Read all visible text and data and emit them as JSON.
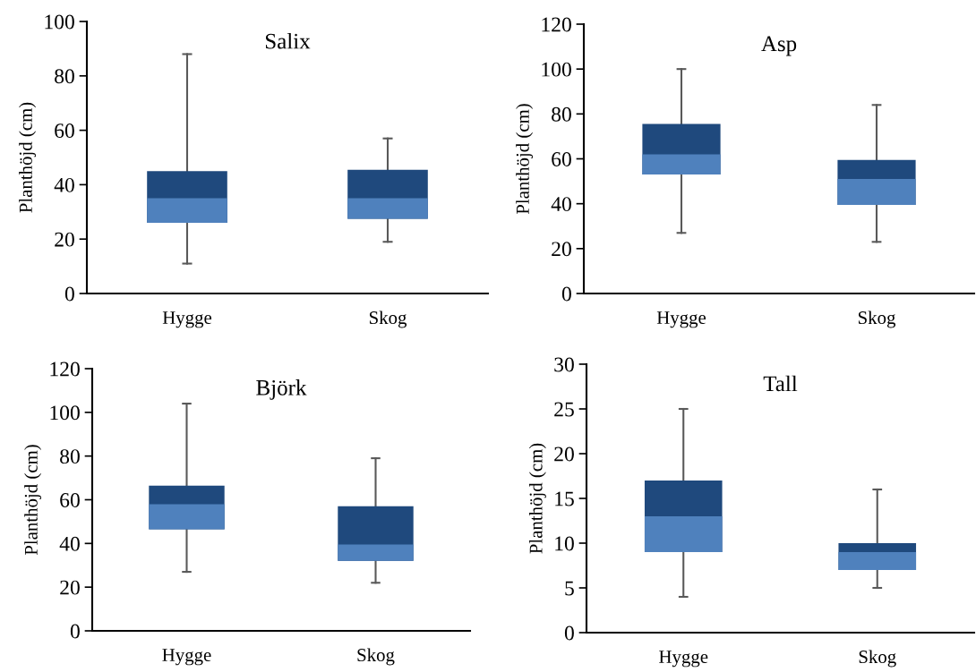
{
  "chart_data": [
    {
      "type": "box",
      "title": "Salix",
      "ylabel": "Planthöjd (cm)",
      "categories": [
        "Hygge",
        "Skog"
      ],
      "colors": [
        "#4f81bd",
        "#1f497d"
      ],
      "ylim": [
        0,
        100
      ],
      "yticks": [
        0,
        20,
        40,
        60,
        80,
        100
      ],
      "grid": false,
      "legend": false,
      "boxes": [
        {
          "low": 11,
          "q1": 26,
          "median": 35,
          "q3": 45,
          "high": 88
        },
        {
          "low": 19,
          "q1": 27.5,
          "median": 35,
          "q3": 45.5,
          "high": 57
        }
      ]
    },
    {
      "type": "box",
      "title": "Asp",
      "ylabel": "Planthöjd (cm)",
      "categories": [
        "Hygge",
        "Skog"
      ],
      "colors": [
        "#4f81bd",
        "#1f497d"
      ],
      "ylim": [
        0,
        120
      ],
      "yticks": [
        0,
        20,
        40,
        60,
        80,
        100,
        120
      ],
      "grid": false,
      "legend": false,
      "boxes": [
        {
          "low": 27,
          "q1": 53,
          "median": 62,
          "q3": 75.5,
          "high": 100
        },
        {
          "low": 23,
          "q1": 39.5,
          "median": 51,
          "q3": 59.5,
          "high": 84
        }
      ]
    },
    {
      "type": "box",
      "title": "Björk",
      "ylabel": "Planthöjd (cm)",
      "categories": [
        "Hygge",
        "Skog"
      ],
      "colors": [
        "#4f81bd",
        "#1f497d"
      ],
      "ylim": [
        0,
        120
      ],
      "yticks": [
        0,
        20,
        40,
        60,
        80,
        100,
        120
      ],
      "grid": false,
      "legend": false,
      "boxes": [
        {
          "low": 27,
          "q1": 46.5,
          "median": 58,
          "q3": 66.5,
          "high": 104
        },
        {
          "low": 22,
          "q1": 32,
          "median": 39.5,
          "q3": 57,
          "high": 79
        }
      ]
    },
    {
      "type": "box",
      "title": "Tall",
      "ylabel": "Planthöjd (cm)",
      "categories": [
        "Hygge",
        "Skog"
      ],
      "colors": [
        "#4f81bd",
        "#1f497d"
      ],
      "ylim": [
        0,
        30
      ],
      "yticks": [
        0,
        5,
        10,
        15,
        20,
        25,
        30
      ],
      "grid": false,
      "legend": false,
      "boxes": [
        {
          "low": 4,
          "q1": 9,
          "median": 13,
          "q3": 17,
          "high": 25
        },
        {
          "low": 5,
          "q1": 7,
          "median": 9,
          "q3": 10,
          "high": 16
        }
      ]
    }
  ]
}
